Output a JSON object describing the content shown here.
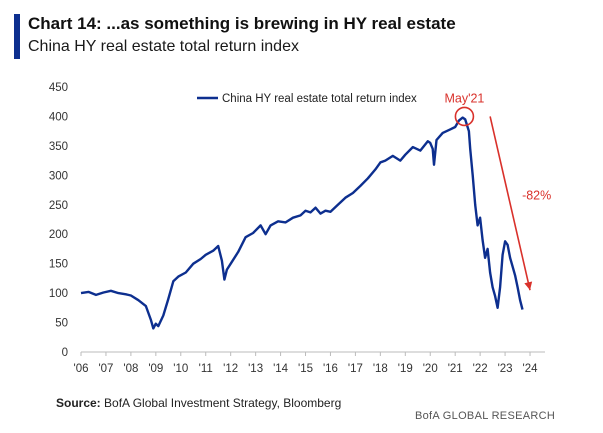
{
  "header": {
    "title": "Chart 14: ...as something is brewing in HY real estate",
    "subtitle": "China HY real estate total return index"
  },
  "footer": {
    "source_label": "Source:",
    "source_text": "BofA Global Investment Strategy, Bloomberg",
    "brand": "BofA GLOBAL RESEARCH"
  },
  "colors": {
    "line": "#0d2f8f",
    "accent": "#d9312b",
    "axis": "#bbbbbb"
  },
  "chart_data": {
    "type": "line",
    "title": "China HY real estate total return index",
    "xlabel": "",
    "ylabel": "",
    "xlim": [
      2006.0,
      2024.6
    ],
    "ylim": [
      0,
      450
    ],
    "y_ticks": [
      0,
      50,
      100,
      150,
      200,
      250,
      300,
      350,
      400,
      450
    ],
    "x_ticks": [
      {
        "value": 2006,
        "label": "'06"
      },
      {
        "value": 2007,
        "label": "'07"
      },
      {
        "value": 2008,
        "label": "'08"
      },
      {
        "value": 2009,
        "label": "'09"
      },
      {
        "value": 2010,
        "label": "'10"
      },
      {
        "value": 2011,
        "label": "'11"
      },
      {
        "value": 2012,
        "label": "'12"
      },
      {
        "value": 2013,
        "label": "'13"
      },
      {
        "value": 2014,
        "label": "'14"
      },
      {
        "value": 2015,
        "label": "'15"
      },
      {
        "value": 2016,
        "label": "'16"
      },
      {
        "value": 2017,
        "label": "'17"
      },
      {
        "value": 2018,
        "label": "'18"
      },
      {
        "value": 2019,
        "label": "'19"
      },
      {
        "value": 2020,
        "label": "'20"
      },
      {
        "value": 2021,
        "label": "'21"
      },
      {
        "value": 2022,
        "label": "'22"
      },
      {
        "value": 2023,
        "label": "'23"
      },
      {
        "value": 2024,
        "label": "'24"
      }
    ],
    "legend": "China HY real estate total return index",
    "legend_position": "top-center",
    "series": [
      {
        "name": "China HY real estate total return index",
        "points": [
          [
            2006.0,
            100
          ],
          [
            2006.3,
            102
          ],
          [
            2006.6,
            97
          ],
          [
            2006.9,
            101
          ],
          [
            2007.2,
            104
          ],
          [
            2007.5,
            100
          ],
          [
            2007.8,
            98
          ],
          [
            2008.0,
            96
          ],
          [
            2008.3,
            88
          ],
          [
            2008.6,
            78
          ],
          [
            2008.8,
            55
          ],
          [
            2008.9,
            40
          ],
          [
            2009.0,
            48
          ],
          [
            2009.1,
            44
          ],
          [
            2009.3,
            62
          ],
          [
            2009.5,
            90
          ],
          [
            2009.7,
            120
          ],
          [
            2009.9,
            128
          ],
          [
            2010.2,
            135
          ],
          [
            2010.5,
            150
          ],
          [
            2010.8,
            158
          ],
          [
            2011.0,
            165
          ],
          [
            2011.3,
            172
          ],
          [
            2011.5,
            180
          ],
          [
            2011.65,
            155
          ],
          [
            2011.75,
            123
          ],
          [
            2011.85,
            140
          ],
          [
            2012.0,
            150
          ],
          [
            2012.3,
            170
          ],
          [
            2012.6,
            195
          ],
          [
            2012.9,
            202
          ],
          [
            2013.2,
            215
          ],
          [
            2013.4,
            200
          ],
          [
            2013.6,
            215
          ],
          [
            2013.9,
            222
          ],
          [
            2014.2,
            220
          ],
          [
            2014.5,
            228
          ],
          [
            2014.8,
            232
          ],
          [
            2015.0,
            240
          ],
          [
            2015.2,
            237
          ],
          [
            2015.4,
            245
          ],
          [
            2015.6,
            235
          ],
          [
            2015.8,
            240
          ],
          [
            2016.0,
            238
          ],
          [
            2016.3,
            250
          ],
          [
            2016.6,
            262
          ],
          [
            2016.9,
            270
          ],
          [
            2017.2,
            282
          ],
          [
            2017.5,
            295
          ],
          [
            2017.8,
            310
          ],
          [
            2018.0,
            322
          ],
          [
            2018.2,
            325
          ],
          [
            2018.5,
            333
          ],
          [
            2018.8,
            325
          ],
          [
            2019.0,
            335
          ],
          [
            2019.3,
            348
          ],
          [
            2019.6,
            342
          ],
          [
            2019.9,
            358
          ],
          [
            2020.0,
            355
          ],
          [
            2020.1,
            345
          ],
          [
            2020.15,
            318
          ],
          [
            2020.25,
            360
          ],
          [
            2020.5,
            372
          ],
          [
            2020.8,
            378
          ],
          [
            2021.0,
            382
          ],
          [
            2021.15,
            393
          ],
          [
            2021.3,
            398
          ],
          [
            2021.4,
            395
          ],
          [
            2021.55,
            375
          ],
          [
            2021.6,
            345
          ],
          [
            2021.7,
            300
          ],
          [
            2021.8,
            250
          ],
          [
            2021.9,
            215
          ],
          [
            2022.0,
            228
          ],
          [
            2022.1,
            190
          ],
          [
            2022.2,
            160
          ],
          [
            2022.3,
            175
          ],
          [
            2022.4,
            135
          ],
          [
            2022.5,
            110
          ],
          [
            2022.6,
            95
          ],
          [
            2022.7,
            75
          ],
          [
            2022.8,
            110
          ],
          [
            2022.9,
            165
          ],
          [
            2023.0,
            188
          ],
          [
            2023.1,
            182
          ],
          [
            2023.2,
            160
          ],
          [
            2023.3,
            145
          ],
          [
            2023.4,
            130
          ],
          [
            2023.5,
            110
          ],
          [
            2023.6,
            88
          ],
          [
            2023.7,
            72
          ]
        ]
      }
    ],
    "annotations": [
      {
        "text": "May'21",
        "x": 2021.37,
        "y": 400,
        "marker": "circle"
      },
      {
        "text": "-82%",
        "arrow_from": [
          2022.4,
          400
        ],
        "arrow_to": [
          2024.0,
          105
        ]
      }
    ]
  }
}
